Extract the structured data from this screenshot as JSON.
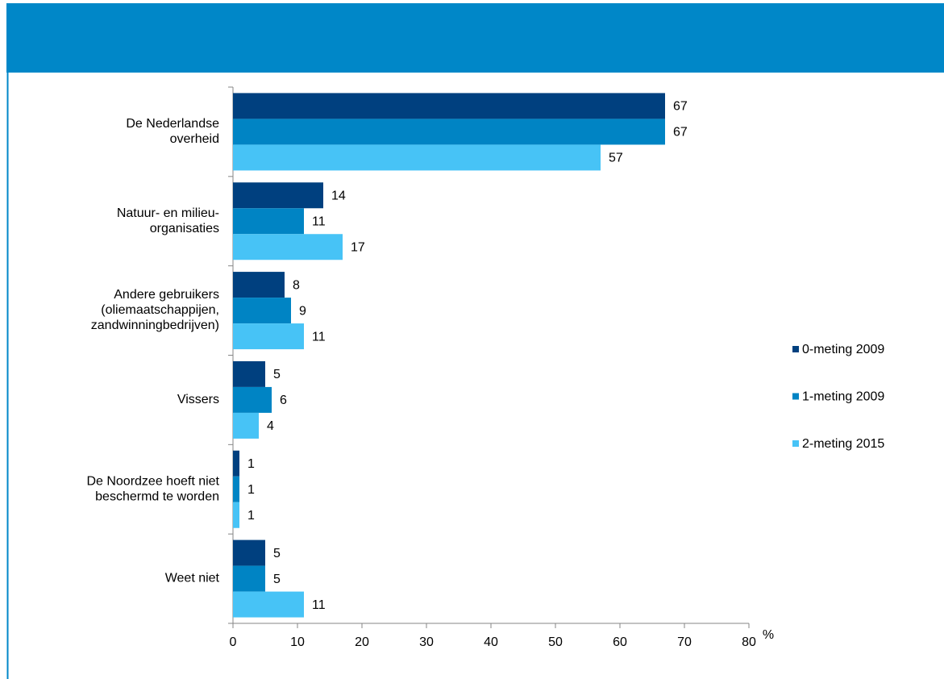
{
  "chart_data": {
    "type": "hbar",
    "categories": [
      [
        "De Nederlandse",
        "overheid"
      ],
      [
        "Natuur- en milieu-",
        "organisaties"
      ],
      [
        "Andere gebruikers",
        "(oliemaatschappijen,",
        "zandwinningbedrijven)"
      ],
      [
        "Vissers"
      ],
      [
        "De Noordzee hoeft niet",
        "beschermd te worden"
      ],
      [
        "Weet niet"
      ]
    ],
    "series": [
      {
        "name": "0-meting 2009",
        "color": "#00407f",
        "values": [
          67,
          14,
          8,
          5,
          1,
          5
        ]
      },
      {
        "name": "1-meting 2009",
        "color": "#0084c4",
        "values": [
          67,
          11,
          9,
          6,
          1,
          5
        ]
      },
      {
        "name": "2-meting 2015",
        "color": "#47c3f6",
        "values": [
          57,
          17,
          11,
          4,
          1,
          11
        ]
      }
    ],
    "xlabel": "%",
    "xlim": [
      0,
      80
    ],
    "xticks": [
      0,
      10,
      20,
      30,
      40,
      50,
      60,
      70,
      80
    ],
    "legend": "right"
  }
}
